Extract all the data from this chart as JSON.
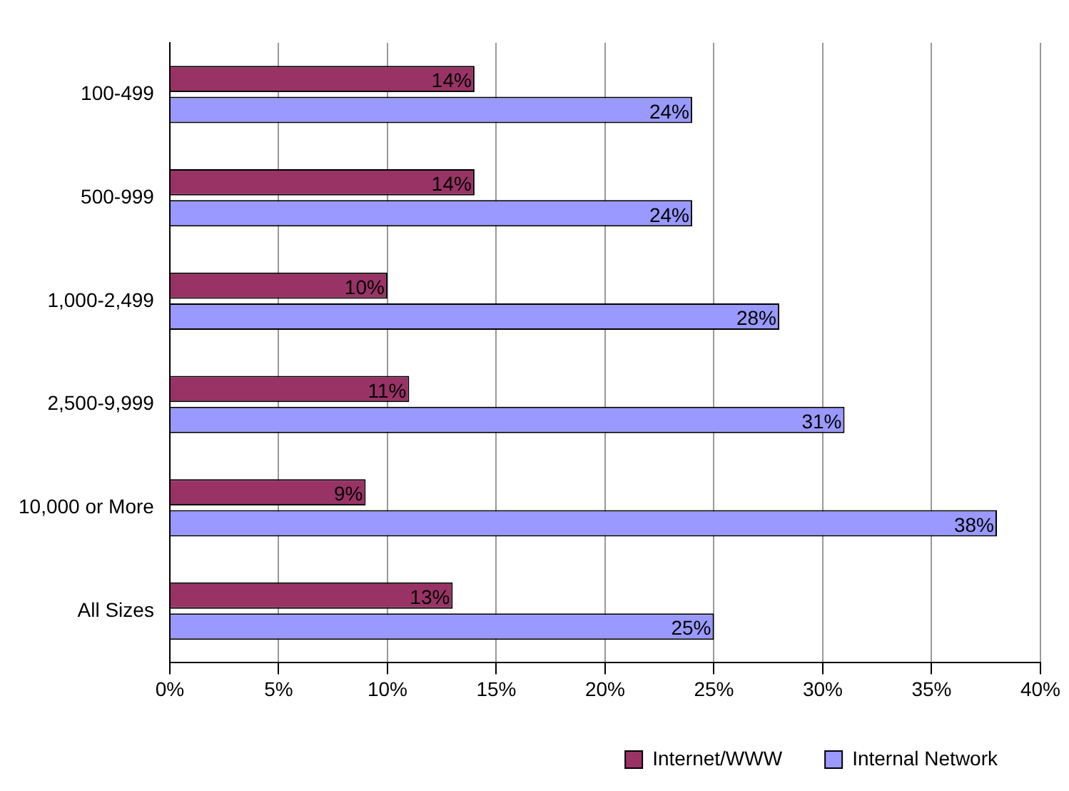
{
  "chart_data": {
    "type": "bar",
    "orientation": "horizontal",
    "categories": [
      "100-499",
      "500-999",
      "1,000-2,499",
      "2,500-9,999",
      "10,000 or More",
      "All Sizes"
    ],
    "series": [
      {
        "name": "Internet/WWW",
        "color": "#993366",
        "values": [
          14,
          14,
          10,
          11,
          9,
          13
        ],
        "value_labels": [
          "14%",
          "14%",
          "10%",
          "11%",
          "9%",
          "13%"
        ]
      },
      {
        "name": "Internal Network",
        "color": "#9999ff",
        "values": [
          24,
          24,
          28,
          31,
          38,
          25
        ],
        "value_labels": [
          "24%",
          "24%",
          "28%",
          "31%",
          "38%",
          "25%"
        ]
      }
    ],
    "xlim": [
      0,
      40
    ],
    "xticks": [
      {
        "value": 0,
        "label": "0%"
      },
      {
        "value": 5,
        "label": "5%"
      },
      {
        "value": 10,
        "label": "10%"
      },
      {
        "value": 15,
        "label": "15%"
      },
      {
        "value": 20,
        "label": "20%"
      },
      {
        "value": 25,
        "label": "25%"
      },
      {
        "value": 30,
        "label": "30%"
      },
      {
        "value": 35,
        "label": "35%"
      },
      {
        "value": 40,
        "label": "40%"
      }
    ],
    "grid": "x",
    "legend": "bottom right"
  }
}
